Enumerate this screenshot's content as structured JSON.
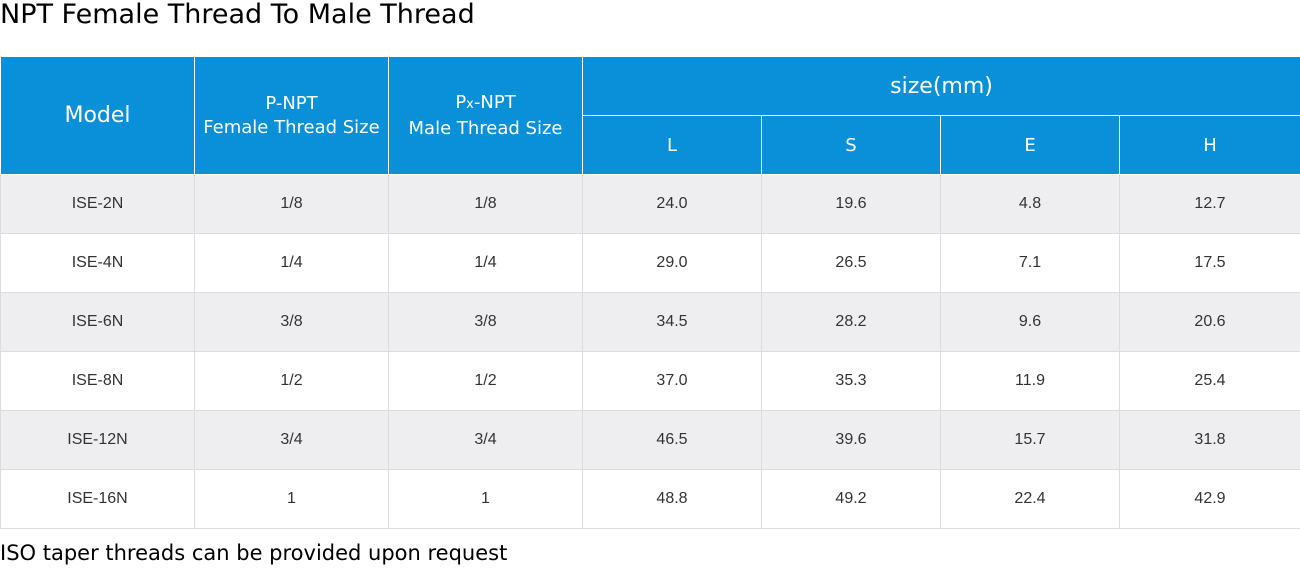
{
  "title": "NPT Female Thread To Male Thread",
  "header": {
    "model": "Model",
    "p_line1": "P-NPT",
    "p_line2": "Female Thread Size",
    "px_main": "P",
    "px_sub": "x",
    "px_suffix": "-NPT",
    "px_line2": "Male Thread Size",
    "size_group": "size(mm)",
    "L": "L",
    "S": "S",
    "E": "E",
    "H": "H"
  },
  "rows": [
    {
      "model": "ISE-2N",
      "p": "1/8",
      "px": "1/8",
      "L": "24.0",
      "S": "19.6",
      "E": "4.8",
      "H": "12.7"
    },
    {
      "model": "ISE-4N",
      "p": "1/4",
      "px": "1/4",
      "L": "29.0",
      "S": "26.5",
      "E": "7.1",
      "H": "17.5"
    },
    {
      "model": "ISE-6N",
      "p": "3/8",
      "px": "3/8",
      "L": "34.5",
      "S": "28.2",
      "E": "9.6",
      "H": "20.6"
    },
    {
      "model": "ISE-8N",
      "p": "1/2",
      "px": "1/2",
      "L": "37.0",
      "S": "35.3",
      "E": "11.9",
      "H": "25.4"
    },
    {
      "model": "ISE-12N",
      "p": "3/4",
      "px": "3/4",
      "L": "46.5",
      "S": "39.6",
      "E": "15.7",
      "H": "31.8"
    },
    {
      "model": "ISE-16N",
      "p": "1",
      "px": "1",
      "L": "48.8",
      "S": "49.2",
      "E": "22.4",
      "H": "42.9"
    }
  ],
  "note": "ISO taper threads can be provided upon request",
  "colors": {
    "header_bg": "#0a90d8",
    "row_alt": "#eeeef0"
  }
}
